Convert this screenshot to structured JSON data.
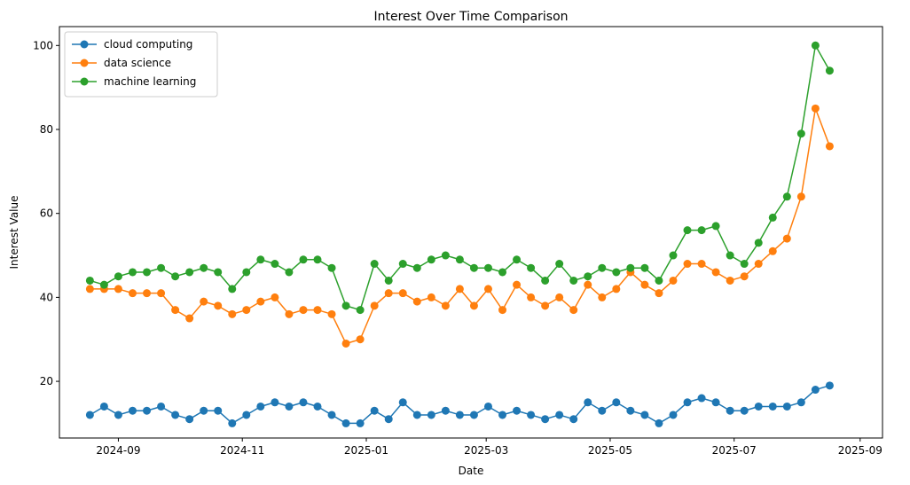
{
  "chart_data": {
    "type": "line",
    "title": "Interest Over Time Comparison",
    "xlabel": "Date",
    "ylabel": "Interest Value",
    "x_axis": "date",
    "xlim": [
      "2024-08-03",
      "2025-09-12"
    ],
    "ylim": [
      6.5,
      104.5
    ],
    "xticks": [
      {
        "date": "2024-09-01",
        "label": "2024-09"
      },
      {
        "date": "2024-11-01",
        "label": "2024-11"
      },
      {
        "date": "2025-01-01",
        "label": "2025-01"
      },
      {
        "date": "2025-03-01",
        "label": "2025-03"
      },
      {
        "date": "2025-05-01",
        "label": "2025-05"
      },
      {
        "date": "2025-07-01",
        "label": "2025-07"
      },
      {
        "date": "2025-09-01",
        "label": "2025-09"
      }
    ],
    "yticks": [
      20,
      40,
      60,
      80,
      100
    ],
    "grid": false,
    "legend_position": "top-left",
    "x": [
      "2024-08-18",
      "2024-08-25",
      "2024-09-01",
      "2024-09-08",
      "2024-09-15",
      "2024-09-22",
      "2024-09-29",
      "2024-10-06",
      "2024-10-13",
      "2024-10-20",
      "2024-10-27",
      "2024-11-03",
      "2024-11-10",
      "2024-11-17",
      "2024-11-24",
      "2024-12-01",
      "2024-12-08",
      "2024-12-15",
      "2024-12-22",
      "2024-12-29",
      "2025-01-05",
      "2025-01-12",
      "2025-01-19",
      "2025-01-26",
      "2025-02-02",
      "2025-02-09",
      "2025-02-16",
      "2025-02-23",
      "2025-03-02",
      "2025-03-09",
      "2025-03-16",
      "2025-03-23",
      "2025-03-30",
      "2025-04-06",
      "2025-04-13",
      "2025-04-20",
      "2025-04-27",
      "2025-05-04",
      "2025-05-11",
      "2025-05-18",
      "2025-05-25",
      "2025-06-01",
      "2025-06-08",
      "2025-06-15",
      "2025-06-22",
      "2025-06-29",
      "2025-07-06",
      "2025-07-13",
      "2025-07-20",
      "2025-07-27",
      "2025-08-03",
      "2025-08-10",
      "2025-08-17"
    ],
    "series": [
      {
        "name": "cloud computing",
        "color": "#1f77b4",
        "values": [
          12,
          14,
          12,
          13,
          13,
          14,
          12,
          11,
          13,
          13,
          10,
          12,
          14,
          15,
          14,
          15,
          14,
          12,
          10,
          10,
          13,
          11,
          15,
          12,
          12,
          13,
          12,
          12,
          14,
          12,
          13,
          12,
          11,
          12,
          11,
          15,
          13,
          15,
          13,
          12,
          10,
          12,
          15,
          16,
          15,
          13,
          13,
          14,
          14,
          14,
          15,
          18,
          19
        ]
      },
      {
        "name": "data science",
        "color": "#ff7f0e",
        "values": [
          42,
          42,
          42,
          41,
          41,
          41,
          37,
          35,
          39,
          38,
          36,
          37,
          39,
          40,
          36,
          37,
          37,
          36,
          29,
          30,
          38,
          41,
          41,
          39,
          40,
          38,
          42,
          38,
          42,
          37,
          43,
          40,
          38,
          40,
          37,
          43,
          40,
          42,
          46,
          43,
          41,
          44,
          48,
          48,
          46,
          44,
          45,
          48,
          51,
          54,
          64,
          85,
          76
        ]
      },
      {
        "name": "machine learning",
        "color": "#2ca02c",
        "values": [
          44,
          43,
          45,
          46,
          46,
          47,
          45,
          46,
          47,
          46,
          42,
          46,
          49,
          48,
          46,
          49,
          49,
          47,
          38,
          37,
          48,
          44,
          48,
          47,
          49,
          50,
          49,
          47,
          47,
          46,
          49,
          47,
          44,
          48,
          44,
          45,
          47,
          46,
          47,
          47,
          44,
          50,
          56,
          56,
          57,
          50,
          48,
          53,
          59,
          64,
          79,
          100,
          94
        ]
      }
    ]
  }
}
